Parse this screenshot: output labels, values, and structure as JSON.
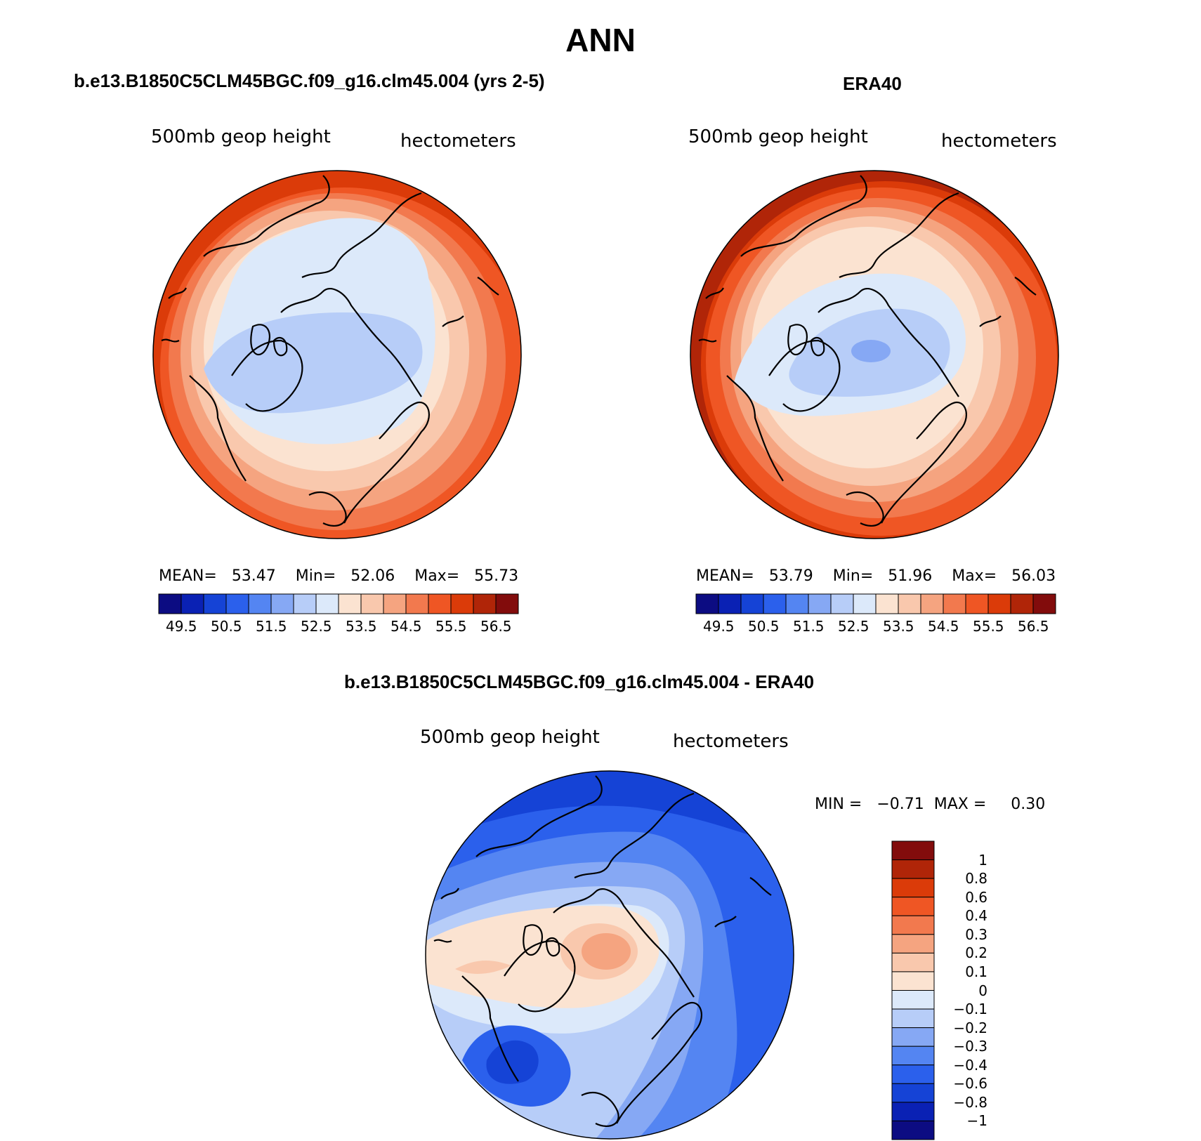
{
  "figure": {
    "title": "ANN"
  },
  "panels": [
    {
      "title": "b.e13.B1850C5CLM45BGC.f09_g16.clm45.004 (yrs 2-5)",
      "field": "500mb geop height",
      "units": "hectometers",
      "stats": {
        "mean_label": "MEAN=",
        "mean": "53.47",
        "min_label": "Min=",
        "min": "52.06",
        "max_label": "Max=",
        "max": "55.73"
      },
      "colorbar_ticks": [
        "49.5",
        "50.5",
        "51.5",
        "52.5",
        "53.5",
        "54.5",
        "55.5",
        "56.5"
      ]
    },
    {
      "title": "ERA40",
      "field": "500mb geop height",
      "units": "hectometers",
      "stats": {
        "mean_label": "MEAN=",
        "mean": "53.79",
        "min_label": "Min=",
        "min": "51.96",
        "max_label": "Max=",
        "max": "56.03"
      },
      "colorbar_ticks": [
        "49.5",
        "50.5",
        "51.5",
        "52.5",
        "53.5",
        "54.5",
        "55.5",
        "56.5"
      ]
    },
    {
      "title": "b.e13.B1850C5CLM45BGC.f09_g16.clm45.004 - ERA40",
      "field": "500mb geop height",
      "units": "hectometers",
      "stats": {
        "min_label": "MIN =",
        "min": "−0.71",
        "max_label": "MAX =",
        "max": "0.30"
      },
      "colorbar_ticks": [
        "1",
        "0.8",
        "0.6",
        "0.4",
        "0.3",
        "0.2",
        "0.1",
        "0",
        "−0.1",
        "−0.2",
        "−0.3",
        "−0.4",
        "−0.6",
        "−0.8",
        "−1"
      ]
    }
  ],
  "colors": {
    "abs_scale": [
      "#0c0c82",
      "#0a21b4",
      "#1543d6",
      "#2b60ec",
      "#5485f2",
      "#86a8f4",
      "#b7cdf8",
      "#dce9fa",
      "#fbe3d1",
      "#f9c8ad",
      "#f5a480",
      "#f2794e",
      "#ef5624",
      "#db3b09",
      "#b02508",
      "#820c0c"
    ],
    "diff_scale": [
      "#820c0c",
      "#b02508",
      "#db3b09",
      "#ef5624",
      "#f2794e",
      "#f5a480",
      "#f9c8ad",
      "#fbe3d1",
      "#dce9fa",
      "#b7cdf8",
      "#86a8f4",
      "#5485f2",
      "#2b60ec",
      "#1543d6",
      "#0a21b4",
      "#0c0c82"
    ]
  }
}
